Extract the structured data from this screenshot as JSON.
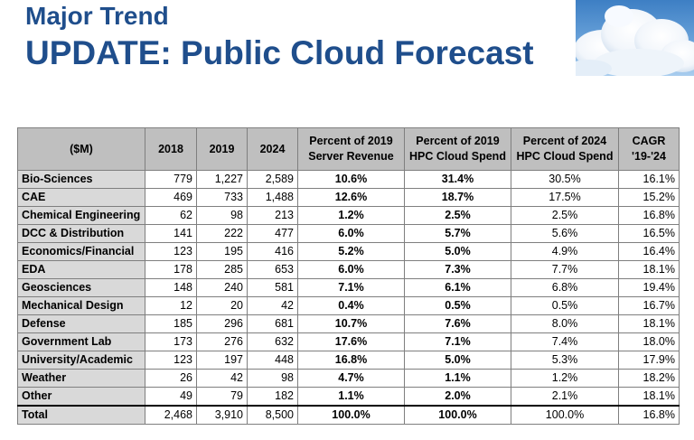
{
  "header": {
    "title_line1": "Major Trend",
    "title_line2": "UPDATE: Public Cloud Forecast"
  },
  "table": {
    "columns": [
      "($M)",
      "2018",
      "2019",
      "2024",
      "Percent of 2019 Server Revenue",
      "Percent of 2019 HPC Cloud Spend",
      "Percent of 2024 HPC Cloud Spend",
      "CAGR '19-'24"
    ],
    "rows": [
      [
        "Bio-Sciences",
        "779",
        "1,227",
        "2,589",
        "10.6%",
        "31.4%",
        "30.5%",
        "16.1%"
      ],
      [
        "CAE",
        "469",
        "733",
        "1,488",
        "12.6%",
        "18.7%",
        "17.5%",
        "15.2%"
      ],
      [
        "Chemical Engineering",
        "62",
        "98",
        "213",
        "1.2%",
        "2.5%",
        "2.5%",
        "16.8%"
      ],
      [
        "DCC & Distribution",
        "141",
        "222",
        "477",
        "6.0%",
        "5.7%",
        "5.6%",
        "16.5%"
      ],
      [
        "Economics/Financial",
        "123",
        "195",
        "416",
        "5.2%",
        "5.0%",
        "4.9%",
        "16.4%"
      ],
      [
        "EDA",
        "178",
        "285",
        "653",
        "6.0%",
        "7.3%",
        "7.7%",
        "18.1%"
      ],
      [
        "Geosciences",
        "148",
        "240",
        "581",
        "7.1%",
        "6.1%",
        "6.8%",
        "19.4%"
      ],
      [
        "Mechanical Design",
        "12",
        "20",
        "42",
        "0.4%",
        "0.5%",
        "0.5%",
        "16.7%"
      ],
      [
        "Defense",
        "185",
        "296",
        "681",
        "10.7%",
        "7.6%",
        "8.0%",
        "18.1%"
      ],
      [
        "Government Lab",
        "173",
        "276",
        "632",
        "17.6%",
        "7.1%",
        "7.4%",
        "18.0%"
      ],
      [
        "University/Academic",
        "123",
        "197",
        "448",
        "16.8%",
        "5.0%",
        "5.3%",
        "17.9%"
      ],
      [
        "Weather",
        "26",
        "42",
        "98",
        "4.7%",
        "1.1%",
        "1.2%",
        "18.2%"
      ],
      [
        "Other",
        "49",
        "79",
        "182",
        "1.1%",
        "2.0%",
        "2.1%",
        "18.1%"
      ],
      [
        "Total",
        "2,468",
        "3,910",
        "8,500",
        "100.0%",
        "100.0%",
        "100.0%",
        "16.8%"
      ]
    ]
  }
}
